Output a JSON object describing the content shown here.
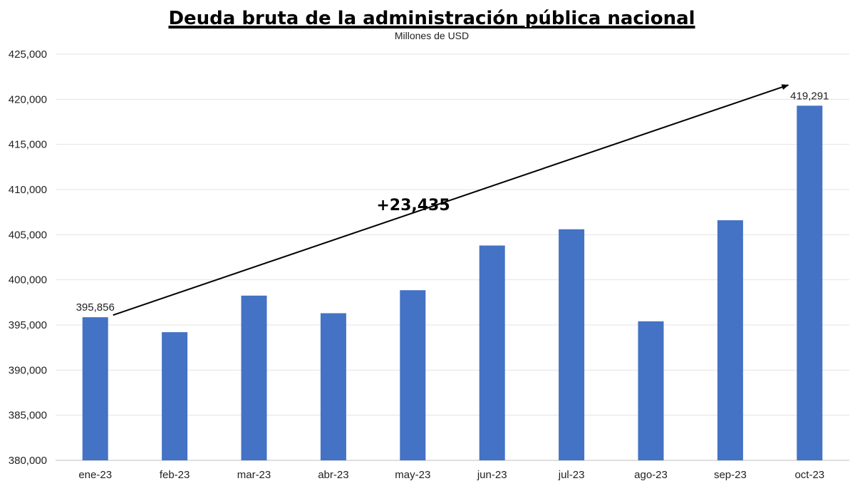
{
  "chart_data": {
    "type": "bar",
    "title": "Deuda bruta de la administración pública nacional",
    "subtitle": "Millones de USD",
    "categories": [
      "ene-23",
      "feb-23",
      "mar-23",
      "abr-23",
      "may-23",
      "jun-23",
      "jul-23",
      "ago-23",
      "sep-23",
      "oct-23"
    ],
    "values": [
      395856,
      394200,
      398250,
      396300,
      398850,
      403800,
      405600,
      395400,
      406600,
      419291
    ],
    "bar_color": "#4472C4",
    "ylim": [
      380000,
      425000
    ],
    "yticks": [
      380000,
      385000,
      390000,
      395000,
      400000,
      405000,
      410000,
      415000,
      420000,
      425000
    ],
    "ytick_labels": [
      "380,000",
      "385,000",
      "390,000",
      "395,000",
      "400,000",
      "405,000",
      "410,000",
      "415,000",
      "420,000",
      "425,000"
    ],
    "data_labels": [
      {
        "category": "ene-23",
        "text": "395,856"
      },
      {
        "category": "oct-23",
        "text": "419,291"
      }
    ],
    "annotation": {
      "text": "+23,435",
      "arrow_from": {
        "category": "ene-23",
        "value": 395856
      },
      "arrow_to": {
        "category": "oct-23",
        "value": 419291
      }
    },
    "grid": true,
    "legend": "none"
  }
}
